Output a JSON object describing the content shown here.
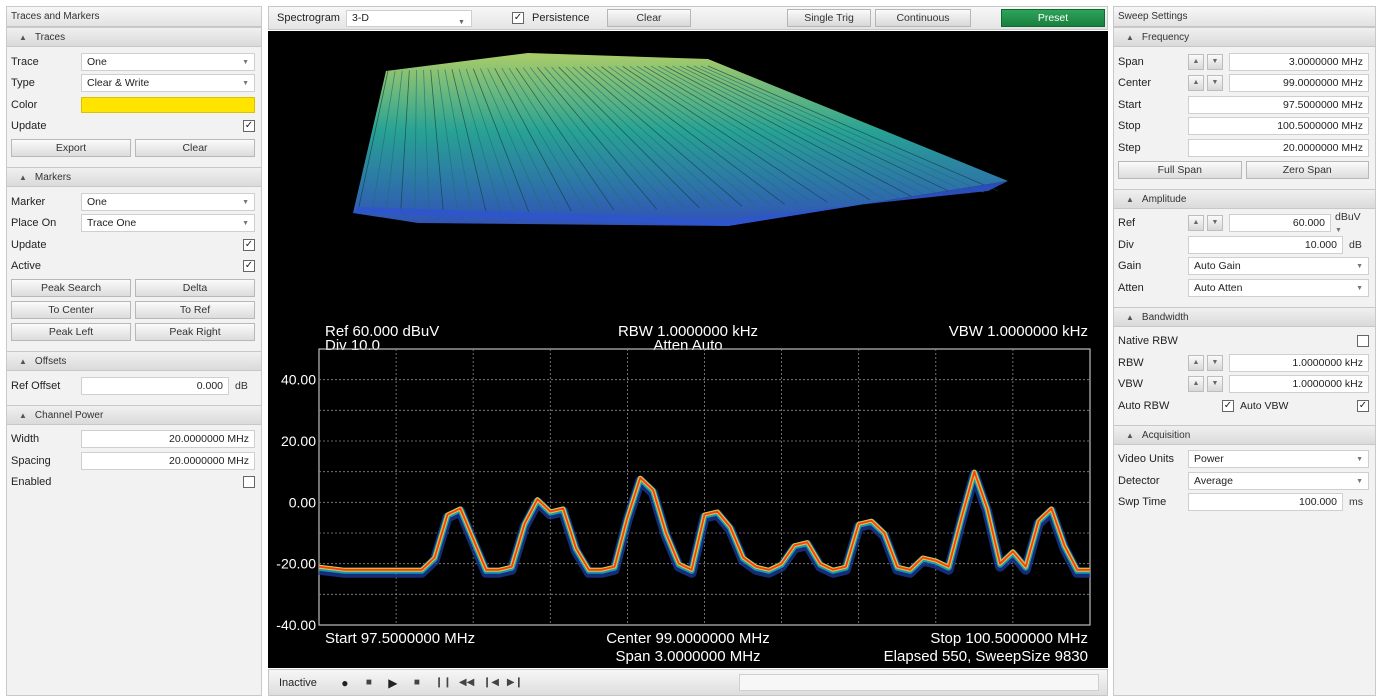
{
  "left_panel": {
    "title": "Traces and Markers",
    "traces": {
      "header": "Traces",
      "rows": [
        {
          "label": "Trace",
          "value": "One"
        },
        {
          "label": "Type",
          "value": "Clear & Write"
        },
        {
          "label": "Color",
          "value": ""
        },
        {
          "label": "Update",
          "checked": true
        }
      ],
      "export_label": "Export",
      "clear_label": "Clear"
    },
    "markers": {
      "header": "Markers",
      "marker_label": "Marker",
      "marker_value": "One",
      "place_label": "Place On",
      "place_value": "Trace One",
      "update_label": "Update",
      "active_label": "Active",
      "buttons": [
        "Peak Search",
        "Delta",
        "To Center",
        "To Ref",
        "Peak Left",
        "Peak Right"
      ]
    },
    "offsets": {
      "header": "Offsets",
      "ref_label": "Ref Offset",
      "ref_value": "0.000",
      "ref_unit": "dB"
    },
    "channel_power": {
      "header": "Channel Power",
      "width_label": "Width",
      "width_value": "20.0000000 MHz",
      "spacing_label": "Spacing",
      "spacing_value": "20.0000000 MHz",
      "enabled_label": "Enabled"
    }
  },
  "toolbar": {
    "view_label": "Spectrogram",
    "view_value": "3-D",
    "persistence_label": "Persistence",
    "clear_label": "Clear",
    "single_trig_label": "Single Trig",
    "continuous_label": "Continuous",
    "preset_label": "Preset",
    "preset_color": "#1e8c45"
  },
  "display": {
    "ref_text": "Ref 60.000 dBuV",
    "div_text": "Div 10.0",
    "rbw_text": "RBW 1.0000000 kHz",
    "atten_text": "Atten Auto",
    "vbw_text": "VBW 1.0000000 kHz",
    "start_text": "Start 97.5000000 MHz",
    "center_text": "Center 99.0000000 MHz",
    "span_text": "Span 3.0000000 MHz",
    "stop_text": "Stop 100.5000000 MHz",
    "elapsed_text": "Elapsed 550, SweepSize 9830",
    "y_ticks": [
      "40.00",
      "20.00",
      "0.00",
      "-20.00",
      "-40.00"
    ]
  },
  "chart_data": {
    "type": "line",
    "x_unit": "MHz",
    "y_unit": "dBuV",
    "xlim": [
      97.5,
      100.5
    ],
    "ylim": [
      -40,
      50
    ],
    "grid": true,
    "series": [
      {
        "x": [
          97.5,
          97.6,
          97.7,
          97.8,
          97.9,
          97.95,
          98.0,
          98.05,
          98.1,
          98.15,
          98.2,
          98.25,
          98.3,
          98.35,
          98.4,
          98.45,
          98.5,
          98.55,
          98.6,
          98.65,
          98.7,
          98.75,
          98.8,
          98.85,
          98.9,
          98.95,
          99.0,
          99.05,
          99.1,
          99.15,
          99.2,
          99.25,
          99.3,
          99.35,
          99.4,
          99.45,
          99.5,
          99.55,
          99.6,
          99.65,
          99.7,
          99.75,
          99.8,
          99.85,
          99.9,
          99.95,
          100.0,
          100.05,
          100.1,
          100.15,
          100.2,
          100.25,
          100.3,
          100.35,
          100.4,
          100.45,
          100.5
        ],
        "y": [
          -21,
          -22,
          -22,
          -22,
          -22,
          -18,
          -4,
          -2,
          -12,
          -22,
          -22,
          -21,
          -7,
          1,
          -3,
          -2,
          -15,
          -22,
          -22,
          -21,
          -5,
          8,
          4,
          -10,
          -20,
          -22,
          -4,
          -3,
          -8,
          -18,
          -21,
          -22,
          -20,
          -14,
          -13,
          -20,
          -22,
          -21,
          -7,
          -6,
          -10,
          -21,
          -22,
          -18,
          -19,
          -21,
          -5,
          10,
          -2,
          -20,
          -16,
          -21,
          -6,
          -2,
          -14,
          -22,
          -22
        ]
      }
    ]
  },
  "transport": {
    "status": "Inactive"
  },
  "right_panel": {
    "title": "Sweep Settings",
    "frequency": {
      "header": "Frequency",
      "span_label": "Span",
      "span_value": "3.0000000 MHz",
      "center_label": "Center",
      "center_value": "99.0000000 MHz",
      "start_label": "Start",
      "start_value": "97.5000000 MHz",
      "stop_label": "Stop",
      "stop_value": "100.5000000 MHz",
      "step_label": "Step",
      "step_value": "20.0000000 MHz",
      "full_span_label": "Full Span",
      "zero_span_label": "Zero Span"
    },
    "amplitude": {
      "header": "Amplitude",
      "ref_label": "Ref",
      "ref_value": "60.000",
      "ref_unit": "dBuV",
      "div_label": "Div",
      "div_value": "10.000",
      "div_unit": "dB",
      "gain_label": "Gain",
      "gain_value": "Auto Gain",
      "atten_label": "Atten",
      "atten_value": "Auto Atten"
    },
    "bandwidth": {
      "header": "Bandwidth",
      "native_label": "Native RBW",
      "rbw_label": "RBW",
      "rbw_value": "1.0000000 kHz",
      "vbw_label": "VBW",
      "vbw_value": "1.0000000 kHz",
      "auto_rbw_label": "Auto RBW",
      "auto_vbw_label": "Auto VBW"
    },
    "acquisition": {
      "header": "Acquisition",
      "video_label": "Video Units",
      "video_value": "Power",
      "detector_label": "Detector",
      "detector_value": "Average",
      "swp_label": "Swp Time",
      "swp_value": "100.000",
      "swp_unit": "ms"
    }
  }
}
